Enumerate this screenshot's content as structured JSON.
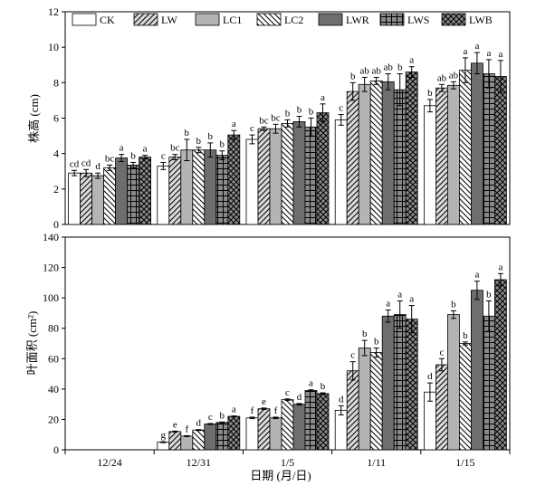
{
  "legend": [
    "CK",
    "LW",
    "LC1",
    "LC2",
    "LWR",
    "LWS",
    "LWB"
  ],
  "fills": [
    "white",
    "hatch-fwd",
    "#b4b4b4",
    "hatch-back",
    "#6e6e6e",
    "grid",
    "crosshatch"
  ],
  "chart_data": [
    {
      "id": "plant-height",
      "type": "bar",
      "ylabel": "株高 (cm)",
      "ylim": [
        0,
        12
      ],
      "yticks": [
        0,
        2,
        4,
        6,
        8,
        10,
        12
      ],
      "categories": [
        "12/24",
        "12/31",
        "1/5",
        "1/11",
        "1/15"
      ],
      "series": [
        {
          "name": "CK",
          "values": [
            2.9,
            3.3,
            4.8,
            5.9,
            6.7
          ],
          "errors": [
            0.15,
            0.2,
            0.25,
            0.3,
            0.35
          ],
          "letters": [
            "cd",
            "c",
            "c",
            "c",
            "b"
          ]
        },
        {
          "name": "LW",
          "values": [
            2.9,
            3.8,
            5.4,
            7.5,
            7.7
          ],
          "errors": [
            0.2,
            0.15,
            0.1,
            0.5,
            0.2
          ],
          "letters": [
            "cd",
            "bc",
            "bc",
            "b",
            "ab"
          ]
        },
        {
          "name": "LC1",
          "values": [
            2.75,
            4.2,
            5.4,
            7.9,
            7.85
          ],
          "errors": [
            0.15,
            0.6,
            0.25,
            0.4,
            0.2
          ],
          "letters": [
            "d",
            "b",
            "bc",
            "ab",
            "ab"
          ]
        },
        {
          "name": "LC2",
          "values": [
            3.2,
            4.2,
            5.7,
            8.1,
            8.7
          ],
          "errors": [
            0.15,
            0.15,
            0.2,
            0.2,
            0.7
          ],
          "letters": [
            "bc",
            "b",
            "b",
            "ab",
            "a"
          ]
        },
        {
          "name": "LWR",
          "values": [
            3.75,
            4.2,
            5.8,
            8.05,
            9.1
          ],
          "errors": [
            0.2,
            0.4,
            0.3,
            0.45,
            0.6
          ],
          "letters": [
            "a",
            "b",
            "b",
            "ab",
            "a"
          ]
        },
        {
          "name": "LWS",
          "values": [
            3.35,
            3.9,
            5.5,
            7.6,
            8.5
          ],
          "errors": [
            0.15,
            0.25,
            0.5,
            0.9,
            0.8
          ],
          "letters": [
            "b",
            "b",
            "b",
            "b",
            "a"
          ]
        },
        {
          "name": "LWB",
          "values": [
            3.8,
            5.05,
            6.3,
            8.6,
            8.35
          ],
          "errors": [
            0.1,
            0.25,
            0.5,
            0.3,
            0.9
          ],
          "letters": [
            "a",
            "a",
            "a",
            "a",
            "a"
          ]
        }
      ]
    },
    {
      "id": "leaf-area",
      "type": "bar",
      "ylabel": "叶面积 (cm²)",
      "ylim": [
        0,
        140
      ],
      "yticks": [
        0,
        20,
        40,
        60,
        80,
        100,
        120,
        140
      ],
      "categories": [
        "12/24",
        "12/31",
        "1/5",
        "1/11",
        "1/15"
      ],
      "series": [
        {
          "name": "CK",
          "values": [
            null,
            5,
            21,
            26,
            38
          ],
          "errors": [
            0,
            0.3,
            0.5,
            3,
            6
          ],
          "letters": [
            "",
            "g",
            "f",
            "d",
            "d"
          ]
        },
        {
          "name": "LW",
          "values": [
            null,
            12,
            27,
            52,
            56
          ],
          "errors": [
            0,
            0.3,
            0.5,
            6,
            4
          ],
          "letters": [
            "",
            "e",
            "e",
            "c",
            "c"
          ]
        },
        {
          "name": "LC1",
          "values": [
            null,
            9,
            21,
            67,
            89
          ],
          "errors": [
            0,
            0.3,
            0.5,
            5,
            2.5
          ],
          "letters": [
            "",
            "f",
            "f",
            "b",
            "b"
          ]
        },
        {
          "name": "LC2",
          "values": [
            null,
            13,
            33,
            64,
            70
          ],
          "errors": [
            0,
            0.3,
            0.5,
            3,
            1
          ],
          "letters": [
            "",
            "d",
            "c",
            "b",
            "b"
          ]
        },
        {
          "name": "LWR",
          "values": [
            null,
            17,
            30,
            88,
            105
          ],
          "errors": [
            0,
            0.3,
            0.5,
            4,
            6
          ],
          "letters": [
            "",
            "c",
            "d",
            "a",
            "a"
          ]
        },
        {
          "name": "LWS",
          "values": [
            null,
            18,
            39,
            89,
            88
          ],
          "errors": [
            0,
            0.3,
            0.5,
            9,
            10
          ],
          "letters": [
            "",
            "b",
            "a",
            "a",
            "b"
          ]
        },
        {
          "name": "LWB",
          "values": [
            null,
            22,
            37,
            86,
            112
          ],
          "errors": [
            0,
            0.3,
            0.5,
            9,
            4
          ],
          "letters": [
            "",
            "a",
            "b",
            "a",
            "a"
          ]
        }
      ]
    }
  ],
  "xlabel": "日期 (月/日)"
}
